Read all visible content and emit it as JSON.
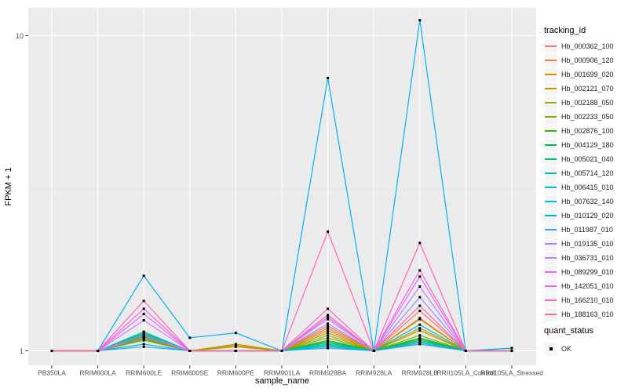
{
  "figure": {
    "x_axis_title": "sample_name",
    "y_axis_title": "FPKM + 1",
    "y_tick_labels": [
      "10",
      "1"
    ]
  },
  "legend": {
    "tracking_title": "tracking_id",
    "quant_title": "quant_status",
    "quant_ok_label": "OK"
  },
  "colors": {
    "panel_bg": "#EBEBEB",
    "gridline": "#FFFFFF",
    "tick_mark": "#333333",
    "axis_text": "#4D4D4D",
    "marker": "#000000",
    "legend_key_bg": "#F5F5F5"
  },
  "chart_data": {
    "type": "line",
    "title": "",
    "xlabel": "sample_name",
    "ylabel": "FPKM + 1",
    "y_scale": "log10",
    "y_tick_values": [
      1,
      10
    ],
    "y_minor_gridlines": [
      3.162
    ],
    "ylim": [
      0.9,
      12.3
    ],
    "grid": true,
    "legend_position": "right",
    "legend_title": "tracking_id",
    "point_marker": {
      "shape": "square",
      "color": "#000000",
      "status_label": "OK"
    },
    "categories": [
      "PB350LA",
      "RRIM600LA",
      "RRIM600LE",
      "RRIM600SE",
      "RRIM600PE",
      "RRIM901LA",
      "RRIM928BA",
      "RRIM928LA",
      "RRIM928LB",
      "RRII105LA_Control",
      "RRII105LA_Stressed"
    ],
    "series": [
      {
        "name": "Hb_000362_100",
        "color": "#F8766D",
        "values": [
          1,
          1,
          1.13,
          1,
          1,
          1,
          1.2,
          1,
          1.34,
          1,
          1
        ]
      },
      {
        "name": "Hb_000906_120",
        "color": "#EA8331",
        "values": [
          1,
          1,
          1.12,
          1,
          1.04,
          1,
          1.18,
          1,
          1.27,
          1,
          1
        ]
      },
      {
        "name": "Hb_001699_020",
        "color": "#D89000",
        "values": [
          1,
          1,
          1.11,
          1,
          1.05,
          1,
          1.16,
          1,
          1.26,
          1,
          1
        ]
      },
      {
        "name": "Hb_002121_070",
        "color": "#C09B00",
        "values": [
          1,
          1,
          1.1,
          1,
          1.04,
          1,
          1.14,
          1,
          1.18,
          1,
          1
        ]
      },
      {
        "name": "Hb_002188_050",
        "color": "#A3A500",
        "values": [
          1,
          1,
          1.09,
          1,
          1.03,
          1,
          1.12,
          1,
          1.16,
          1,
          1
        ]
      },
      {
        "name": "Hb_002233_050",
        "color": "#7CAE00",
        "values": [
          1,
          1,
          1.08,
          1,
          1,
          1,
          1.1,
          1,
          1.12,
          1,
          1
        ]
      },
      {
        "name": "Hb_002876_100",
        "color": "#39B600",
        "values": [
          1,
          1,
          1.09,
          1,
          1,
          1,
          1.08,
          1,
          1.1,
          1,
          1
        ]
      },
      {
        "name": "Hb_004129_180",
        "color": "#00BB4E",
        "values": [
          1,
          1,
          1.11,
          1,
          1,
          1,
          1.07,
          1,
          1.09,
          1,
          1
        ]
      },
      {
        "name": "Hb_005021_040",
        "color": "#00BF7D",
        "values": [
          1,
          1,
          1.13,
          1,
          1,
          1,
          1.06,
          1,
          1.08,
          1,
          1
        ]
      },
      {
        "name": "Hb_005714_120",
        "color": "#00C1A3",
        "values": [
          1,
          1,
          1.14,
          1,
          1,
          1,
          1.05,
          1,
          1.07,
          1,
          1
        ]
      },
      {
        "name": "Hb_006415_010",
        "color": "#00BFC4",
        "values": [
          1,
          1,
          1.15,
          1,
          1,
          1,
          1.04,
          1,
          1.06,
          1,
          1
        ]
      },
      {
        "name": "Hb_007632_140",
        "color": "#00BADE",
        "values": [
          1,
          1,
          1.05,
          1,
          1,
          1,
          1.03,
          1,
          1.21,
          1,
          1.02
        ]
      },
      {
        "name": "Hb_010129_020",
        "color": "#00B0F6",
        "values": [
          1,
          1,
          1.73,
          1.1,
          1.14,
          1,
          7.34,
          1,
          11.2,
          1,
          1.02
        ]
      },
      {
        "name": "Hb_011987_010",
        "color": "#35A2FF",
        "values": [
          1,
          1,
          1.03,
          1,
          1,
          1,
          1.02,
          1,
          1.05,
          1,
          1
        ]
      },
      {
        "name": "Hb_019135_010",
        "color": "#9590FF",
        "values": [
          1,
          1,
          1.12,
          1,
          1,
          1,
          1.22,
          1,
          1.48,
          1,
          1
        ]
      },
      {
        "name": "Hb_036731_010",
        "color": "#C77CFF",
        "values": [
          1,
          1,
          1.25,
          1,
          1,
          1,
          1.26,
          1,
          1.6,
          1,
          1
        ]
      },
      {
        "name": "Hb_089299_010",
        "color": "#E76BF3",
        "values": [
          1,
          1,
          1.31,
          1,
          1,
          1,
          1.28,
          1,
          1.72,
          1,
          1
        ]
      },
      {
        "name": "Hb_142051_010",
        "color": "#FA62DB",
        "values": [
          1,
          1,
          1.36,
          1,
          1,
          1,
          1.36,
          1,
          1.8,
          1,
          1
        ]
      },
      {
        "name": "Hb_166210_010",
        "color": "#FF62BC",
        "values": [
          1,
          1,
          1.44,
          1,
          1,
          1,
          2.39,
          1,
          2.2,
          1,
          1
        ]
      },
      {
        "name": "Hb_188163_010",
        "color": "#FF6A98",
        "values": [
          1,
          1,
          1.1,
          1,
          1,
          1,
          1.3,
          1,
          1.39,
          1,
          1
        ]
      }
    ]
  }
}
